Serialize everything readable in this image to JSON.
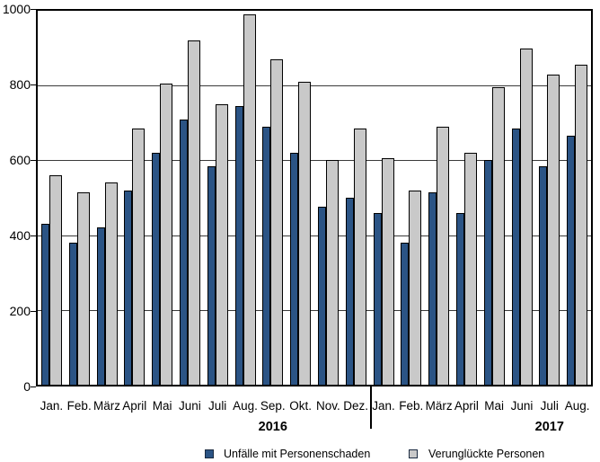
{
  "chart_data": {
    "type": "bar",
    "categories": [
      "Jan.",
      "Feb.",
      "März",
      "April",
      "Mai",
      "Juni",
      "Juli",
      "Aug.",
      "Sep.",
      "Okt.",
      "Nov.",
      "Dez.",
      "Jan.",
      "Feb.",
      "März",
      "April",
      "Mai",
      "Juni",
      "Juli",
      "Aug."
    ],
    "year_groups": [
      {
        "label": "2016",
        "start_index": 0,
        "month_count": 12,
        "label_center_index": 8
      },
      {
        "label": "2017",
        "start_index": 12,
        "month_count": 8,
        "label_center_index": 18
      }
    ],
    "series": [
      {
        "name": "Unfälle mit Personenschaden",
        "color": "#2b5485",
        "values": [
          430,
          380,
          420,
          520,
          620,
          710,
          585,
          745,
          690,
          620,
          475,
          500,
          460,
          380,
          515,
          460,
          600,
          685,
          585,
          665
        ]
      },
      {
        "name": "Verunglückte Personen",
        "color": "#c9c9c9",
        "values": [
          560,
          515,
          540,
          685,
          805,
          920,
          750,
          990,
          870,
          810,
          600,
          685,
          605,
          520,
          690,
          620,
          795,
          900,
          830,
          855
        ]
      }
    ],
    "title": "",
    "xlabel": "",
    "ylabel": "",
    "ylim": [
      0,
      1000
    ],
    "ytick_interval": 200,
    "yticks": [
      "0",
      "200",
      "400",
      "600",
      "800",
      "1000"
    ],
    "grid": true,
    "legend_position": "bottom",
    "bar_border_color": "#000000",
    "year_separator": true
  }
}
